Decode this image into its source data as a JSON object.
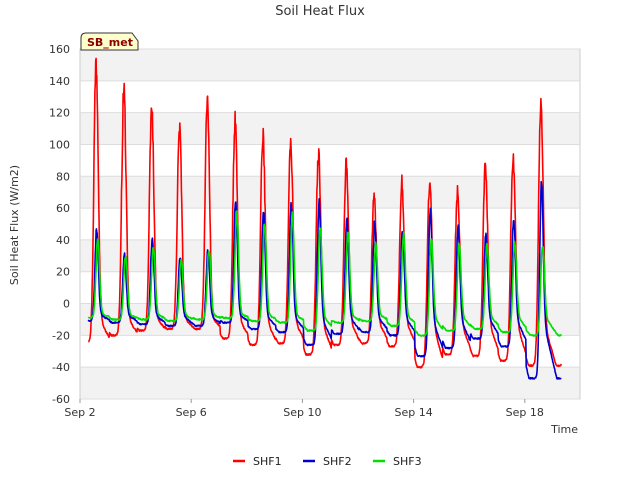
{
  "chart_data": {
    "type": "line",
    "title": "Soil Heat Flux",
    "xlabel": "Time",
    "ylabel": "Soil Heat Flux (W/m2)",
    "station_badge": "SB_met",
    "ylim": [
      -60,
      160
    ],
    "yticks": [
      -60,
      -40,
      -20,
      0,
      20,
      40,
      60,
      80,
      100,
      120,
      140,
      160
    ],
    "xlim": [
      "2023-09-02",
      "2023-09-20"
    ],
    "xticks": [
      {
        "date": "2023-09-02",
        "label": "Sep 2"
      },
      {
        "date": "2023-09-06",
        "label": "Sep 6"
      },
      {
        "date": "2023-09-10",
        "label": "Sep 10"
      },
      {
        "date": "2023-09-14",
        "label": "Sep 14"
      },
      {
        "date": "2023-09-18",
        "label": "Sep 18"
      }
    ],
    "grid": true,
    "legend_position": "bottom",
    "series": [
      {
        "name": "SHF1",
        "color": "#ff0000",
        "daily_peaks": [
          153,
          135,
          123,
          111,
          127,
          114,
          105,
          101,
          94,
          89,
          67,
          76,
          76,
          70,
          88,
          93,
          127
        ],
        "daily_minima": [
          -24,
          -20,
          -17,
          -16,
          -16,
          -22,
          -26,
          -25,
          -32,
          -26,
          -25,
          -27,
          -40,
          -32,
          -33,
          -36,
          -39
        ]
      },
      {
        "name": "SHF2",
        "color": "#0000cc",
        "daily_peaks": [
          47,
          31,
          41,
          30,
          33,
          67,
          60,
          64,
          63,
          53,
          50,
          46,
          58,
          47,
          43,
          54,
          74
        ],
        "daily_minima": [
          -11,
          -12,
          -13,
          -14,
          -14,
          -12,
          -16,
          -18,
          -26,
          -19,
          -18,
          -20,
          -33,
          -28,
          -22,
          -27,
          -47
        ]
      },
      {
        "name": "SHF3",
        "color": "#00e000",
        "daily_peaks": [
          40,
          30,
          36,
          28,
          34,
          56,
          50,
          55,
          47,
          44,
          37,
          44,
          40,
          37,
          37,
          38,
          36
        ],
        "daily_minima": [
          -9,
          -10,
          -10,
          -11,
          -10,
          -9,
          -11,
          -12,
          -17,
          -12,
          -11,
          -14,
          -20,
          -17,
          -16,
          -18,
          -20
        ]
      }
    ]
  }
}
